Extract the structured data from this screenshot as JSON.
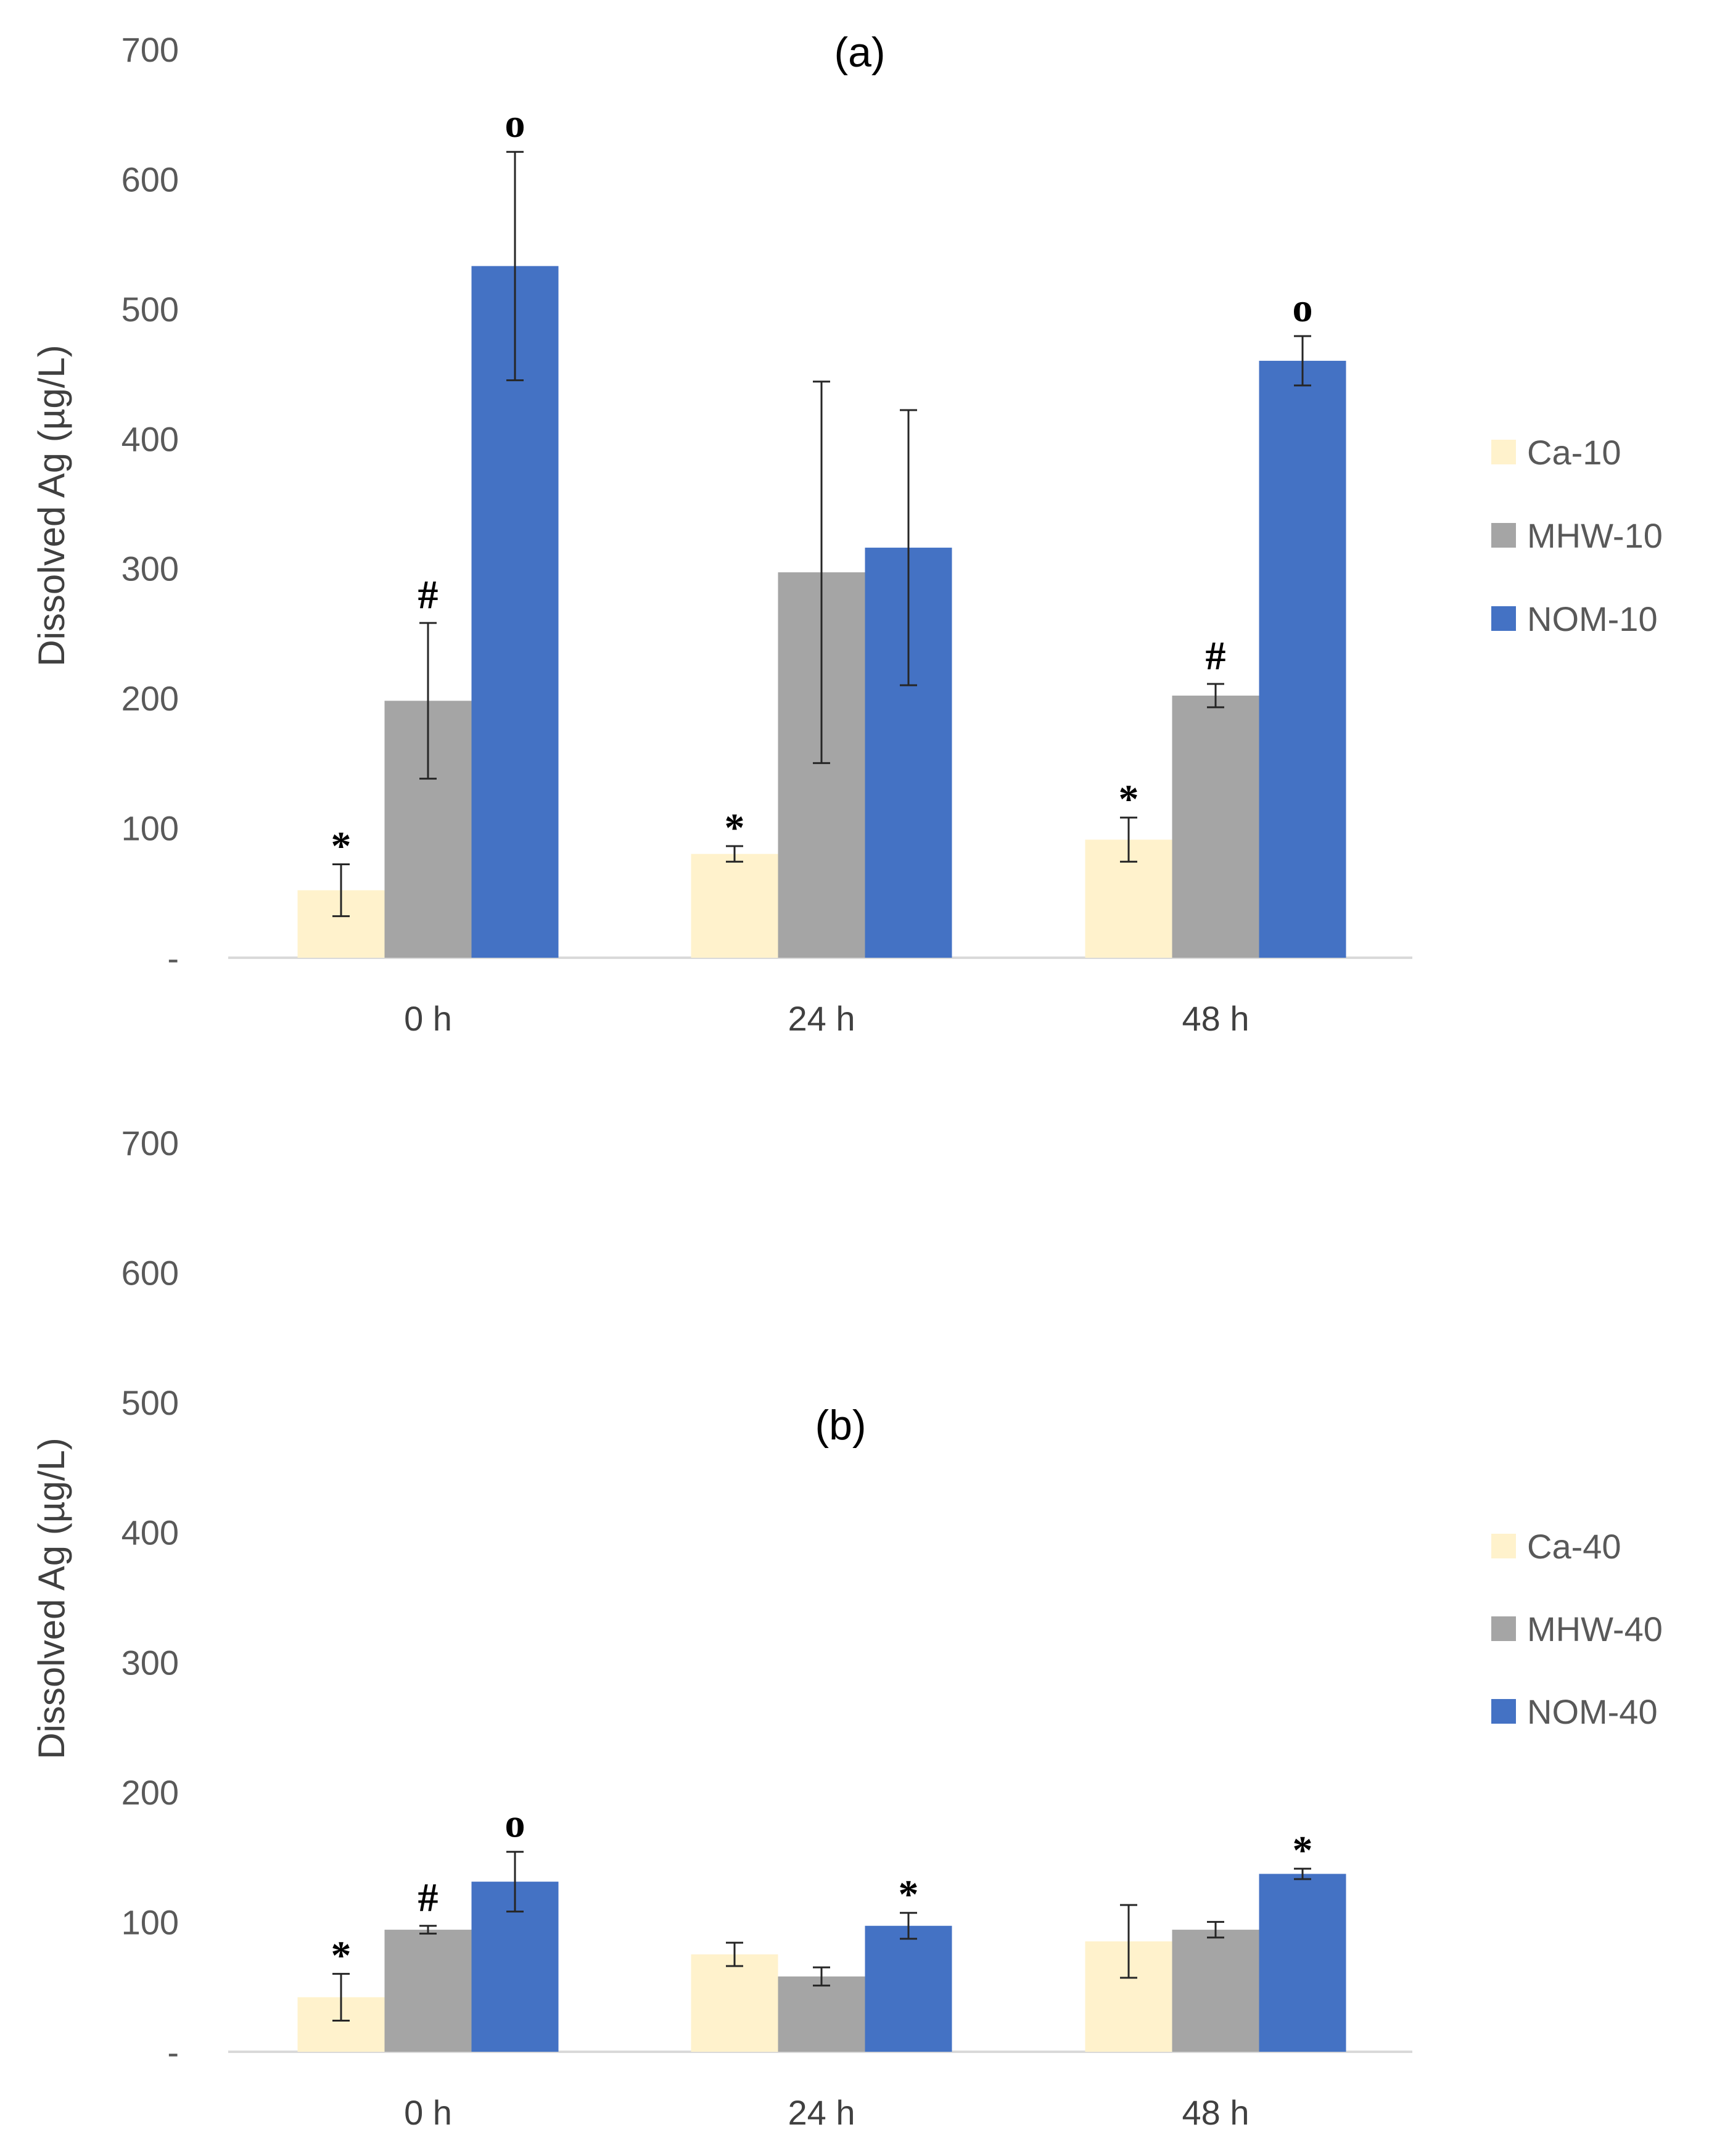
{
  "chart_data": [
    {
      "type": "bar",
      "title": "(a)",
      "ylabel": "Dissolved Ag (µg/L)",
      "xlabel": "",
      "ylim": [
        0,
        700
      ],
      "yticks": [
        "-",
        "100",
        "200",
        "300",
        "400",
        "500",
        "600",
        "700"
      ],
      "categories": [
        "0 h",
        "24 h",
        "48 h"
      ],
      "legend_position": "right",
      "series": [
        {
          "name": "Ca-10",
          "color": "#FFF2CC",
          "values": [
            52,
            80,
            91
          ],
          "error": [
            20,
            6,
            17
          ],
          "annotations": [
            "*",
            "*",
            "*"
          ]
        },
        {
          "name": "MHW-10",
          "color": "#A5A5A5",
          "values": [
            198,
            297,
            202
          ],
          "error": [
            60,
            147,
            9
          ],
          "annotations": [
            "#",
            "",
            "#"
          ]
        },
        {
          "name": "NOM-10",
          "color": "#4472C4",
          "values": [
            533,
            316,
            460
          ],
          "error": [
            88,
            106,
            19
          ],
          "annotations": [
            "o",
            "",
            "o"
          ]
        }
      ]
    },
    {
      "type": "bar",
      "title": "(b)",
      "ylabel": "Dissolved Ag (µg/L)",
      "xlabel": "",
      "ylim": [
        0,
        700
      ],
      "yticks": [
        "-",
        "100",
        "200",
        "300",
        "400",
        "500",
        "600",
        "700"
      ],
      "categories": [
        "0 h",
        "24 h",
        "48 h"
      ],
      "legend_position": "right",
      "series": [
        {
          "name": "Ca-40",
          "color": "#FFF2CC",
          "values": [
            42,
            75,
            85
          ],
          "error": [
            18,
            9,
            28
          ],
          "annotations": [
            "*",
            "",
            ""
          ]
        },
        {
          "name": "MHW-40",
          "color": "#A5A5A5",
          "values": [
            94,
            58,
            94
          ],
          "error": [
            3,
            7,
            6
          ],
          "annotations": [
            "#",
            "",
            ""
          ]
        },
        {
          "name": "NOM-40",
          "color": "#4472C4",
          "values": [
            131,
            97,
            137
          ],
          "error": [
            23,
            10,
            4
          ],
          "annotations": [
            "o",
            "*",
            "*"
          ]
        }
      ]
    }
  ]
}
